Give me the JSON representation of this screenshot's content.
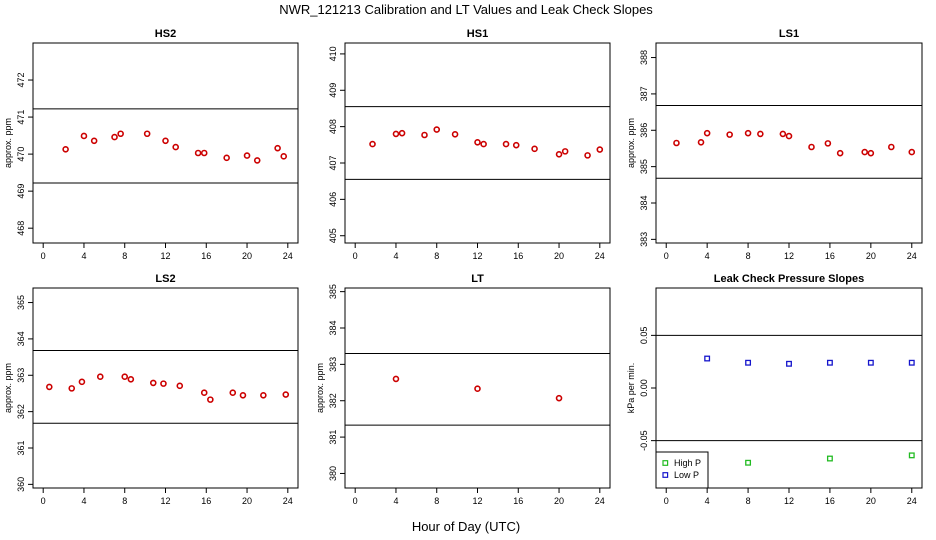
{
  "figure": {
    "title": "NWR_121213  Calibration and LT Values and Leak Check Slopes",
    "xlabel": "Hour of Day (UTC)"
  },
  "chart_data": [
    {
      "type": "scatter",
      "title": "HS2",
      "ylabel": "approx. ppm",
      "xlim": [
        -1,
        25
      ],
      "ylim": [
        467.6,
        473.0
      ],
      "xticks": [
        0,
        4,
        8,
        12,
        16,
        20,
        24
      ],
      "yticks": [
        468,
        469,
        470,
        471,
        472
      ],
      "hlines": [
        471.22,
        469.22
      ],
      "series": [
        {
          "color": "#cc0000",
          "x": [
            2.2,
            4.0,
            5.0,
            7.0,
            7.6,
            10.2,
            12.0,
            13.0,
            15.2,
            15.8,
            18.0,
            20.0,
            21.0,
            23.0,
            23.6
          ],
          "y": [
            470.13,
            470.49,
            470.36,
            470.46,
            470.55,
            470.55,
            470.36,
            470.19,
            470.03,
            470.03,
            469.9,
            469.96,
            469.83,
            470.16,
            469.94
          ]
        }
      ]
    },
    {
      "type": "scatter",
      "title": "HS1",
      "ylabel": "",
      "xlim": [
        -1,
        25
      ],
      "ylim": [
        404.8,
        410.3
      ],
      "xticks": [
        0,
        4,
        8,
        12,
        16,
        20,
        24
      ],
      "yticks": [
        405,
        406,
        407,
        408,
        409,
        410
      ],
      "hlines": [
        408.55,
        406.55
      ],
      "series": [
        {
          "color": "#cc0000",
          "x": [
            1.7,
            4.0,
            4.6,
            6.8,
            8.0,
            9.8,
            12.0,
            12.6,
            14.8,
            15.8,
            17.6,
            20.0,
            20.6,
            22.8,
            24.0
          ],
          "y": [
            407.52,
            407.8,
            407.82,
            407.77,
            407.92,
            407.79,
            407.57,
            407.52,
            407.52,
            407.49,
            407.39,
            407.24,
            407.32,
            407.21,
            407.37
          ]
        }
      ]
    },
    {
      "type": "scatter",
      "title": "LS1",
      "ylabel": "approx. ppm",
      "xlim": [
        -1,
        25
      ],
      "ylim": [
        382.9,
        388.4
      ],
      "xticks": [
        0,
        4,
        8,
        12,
        16,
        20,
        24
      ],
      "yticks": [
        383,
        384,
        385,
        386,
        387,
        388
      ],
      "hlines": [
        386.68,
        384.68
      ],
      "series": [
        {
          "color": "#cc0000",
          "x": [
            1.0,
            3.4,
            4.0,
            6.2,
            8.0,
            9.2,
            11.4,
            12.0,
            14.2,
            15.8,
            17.0,
            19.4,
            20.0,
            22.0,
            24.0
          ],
          "y": [
            385.65,
            385.67,
            385.92,
            385.88,
            385.92,
            385.9,
            385.9,
            385.84,
            385.54,
            385.64,
            385.37,
            385.4,
            385.37,
            385.54,
            385.4
          ]
        }
      ]
    },
    {
      "type": "scatter",
      "title": "LS2",
      "ylabel": "approx. ppm",
      "xlim": [
        -1,
        25
      ],
      "ylim": [
        359.9,
        365.4
      ],
      "xticks": [
        0,
        4,
        8,
        12,
        16,
        20,
        24
      ],
      "yticks": [
        360,
        361,
        362,
        363,
        364,
        365
      ],
      "hlines": [
        363.68,
        361.68
      ],
      "series": [
        {
          "color": "#cc0000",
          "x": [
            0.6,
            2.8,
            3.8,
            5.6,
            8.0,
            8.6,
            10.8,
            11.8,
            13.4,
            15.8,
            16.4,
            18.6,
            19.6,
            21.6,
            23.8
          ],
          "y": [
            362.68,
            362.64,
            362.82,
            362.96,
            362.96,
            362.89,
            362.79,
            362.77,
            362.71,
            362.52,
            362.33,
            362.52,
            362.45,
            362.45,
            362.47
          ]
        }
      ]
    },
    {
      "type": "scatter",
      "title": "LT",
      "ylabel": "approx. ppm",
      "xlim": [
        -1,
        25
      ],
      "ylim": [
        379.6,
        385.1
      ],
      "xticks": [
        0,
        4,
        8,
        12,
        16,
        20,
        24
      ],
      "yticks": [
        380,
        381,
        382,
        383,
        384,
        385
      ],
      "hlines": [
        383.3,
        381.33
      ],
      "series": [
        {
          "color": "#cc0000",
          "x": [
            4.0,
            12.0,
            20.0
          ],
          "y": [
            382.6,
            382.33,
            382.07
          ]
        }
      ]
    },
    {
      "type": "scatter",
      "title": "Leak Check Pressure Slopes",
      "ylabel": "kPa per min.",
      "xlim": [
        -1,
        25
      ],
      "ylim": [
        -0.095,
        0.095
      ],
      "xticks": [
        0,
        4,
        8,
        12,
        16,
        20,
        24
      ],
      "yticks": [
        -0.05,
        0.0,
        0.05
      ],
      "ytick_labels": [
        "-0.05",
        "0.00",
        "0.05"
      ],
      "hlines": [
        0.05,
        -0.05
      ],
      "legend": {
        "position": "bottom-left",
        "entries": [
          "High P",
          "Low P"
        ]
      },
      "series": [
        {
          "name": "High P",
          "color": "#22bb22",
          "marker": "square",
          "x": [
            8.0,
            16.0,
            24.0
          ],
          "y": [
            -0.071,
            -0.067,
            -0.064
          ]
        },
        {
          "name": "Low P",
          "color": "#1515cc",
          "marker": "square",
          "x": [
            4.0,
            8.0,
            12.0,
            16.0,
            20.0,
            24.0
          ],
          "y": [
            0.028,
            0.024,
            0.023,
            0.024,
            0.024,
            0.024
          ]
        }
      ]
    }
  ]
}
